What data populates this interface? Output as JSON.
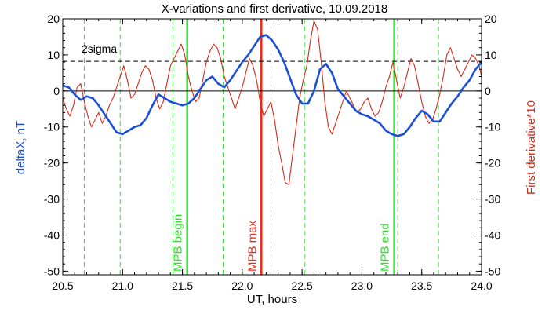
{
  "chart_data": {
    "type": "line",
    "title": "X-variations and first derivative, 10.09.2018",
    "xlabel": "UT, hours",
    "ylabel_left": "deltaX, nT",
    "ylabel_right": "First derivative*10",
    "xlim": [
      20.5,
      24.0
    ],
    "ylim": [
      -51,
      20
    ],
    "xticks": [
      20.5,
      21.0,
      21.5,
      22.0,
      22.5,
      23.0,
      23.5,
      24.0
    ],
    "xtick_labels": [
      "20.5",
      "21.0",
      "21.5",
      "22.0",
      "22.5",
      "23.0",
      "23.5",
      "24.0"
    ],
    "yticks": [
      20,
      10,
      0,
      -10,
      -20,
      -30,
      -40,
      -50
    ],
    "ytick_labels": [
      "20",
      "10",
      "0",
      "-10",
      "-20",
      "-30",
      "-40",
      "-50"
    ],
    "grid": false,
    "colors": {
      "deltaX": "#1a4fd6",
      "derivative": "#d42a1a",
      "mpb_boundary": "#2ee02e",
      "mpb_max": "#ee2a10",
      "axis_left_label": "#1a4fd6",
      "axis_right_label": "#d42a1a",
      "sigma": "#000000"
    },
    "two_sigma": {
      "label": "2sigma",
      "value": 8.2
    },
    "zero_line": 0,
    "dashed_verticals": [
      20.68,
      20.98,
      21.42,
      21.84,
      22.24,
      22.52,
      23.3,
      23.64
    ],
    "markers": [
      {
        "label": "MPB begin",
        "x": 21.54,
        "color": "#2ee02e"
      },
      {
        "label": "MPB max",
        "x": 22.16,
        "color": "#ee2a10"
      },
      {
        "label": "MPB end",
        "x": 23.27,
        "color": "#2ee02e"
      }
    ],
    "series": [
      {
        "key": "deltaX",
        "x": [
          20.5,
          20.55,
          20.6,
          20.65,
          20.7,
          20.75,
          20.8,
          20.85,
          20.9,
          20.95,
          21.0,
          21.05,
          21.1,
          21.15,
          21.2,
          21.25,
          21.3,
          21.35,
          21.4,
          21.45,
          21.5,
          21.55,
          21.6,
          21.65,
          21.7,
          21.75,
          21.8,
          21.85,
          21.9,
          21.95,
          22.0,
          22.05,
          22.1,
          22.15,
          22.2,
          22.25,
          22.3,
          22.35,
          22.4,
          22.45,
          22.5,
          22.55,
          22.6,
          22.65,
          22.7,
          22.75,
          22.8,
          22.85,
          22.9,
          22.95,
          23.0,
          23.05,
          23.1,
          23.15,
          23.2,
          23.25,
          23.3,
          23.35,
          23.4,
          23.45,
          23.5,
          23.55,
          23.6,
          23.65,
          23.7,
          23.75,
          23.8,
          23.85,
          23.9,
          23.95,
          24.0
        ],
        "values": [
          1.5,
          1.0,
          -1.0,
          -2.5,
          -1.5,
          -2.0,
          -4.0,
          -6.5,
          -9.0,
          -11.5,
          -12.0,
          -11.0,
          -10.0,
          -9.5,
          -7.5,
          -4.0,
          -1.0,
          -2.0,
          -3.0,
          -3.5,
          -4.0,
          -3.5,
          -2.0,
          0.5,
          3.0,
          4.0,
          2.0,
          1.0,
          3.0,
          5.5,
          8.0,
          10.0,
          12.5,
          15.0,
          15.5,
          14.0,
          11.5,
          8.0,
          3.5,
          -1.0,
          -3.5,
          -3.5,
          0.0,
          6.0,
          7.5,
          5.0,
          0.5,
          -1.5,
          -3.5,
          -5.5,
          -6.5,
          -7.0,
          -8.0,
          -9.0,
          -11.0,
          -12.0,
          -12.5,
          -12.0,
          -10.0,
          -7.5,
          -5.5,
          -6.5,
          -8.5,
          -8.5,
          -6.0,
          -3.5,
          -1.5,
          1.0,
          3.0,
          6.0,
          8.0
        ]
      },
      {
        "key": "derivative",
        "x": [
          20.5,
          20.53,
          20.56,
          20.59,
          20.62,
          20.65,
          20.68,
          20.71,
          20.74,
          20.77,
          20.8,
          20.83,
          20.86,
          20.89,
          20.92,
          20.95,
          20.98,
          21.01,
          21.04,
          21.07,
          21.1,
          21.13,
          21.16,
          21.19,
          21.22,
          21.25,
          21.28,
          21.31,
          21.34,
          21.37,
          21.4,
          21.43,
          21.46,
          21.49,
          21.52,
          21.55,
          21.58,
          21.61,
          21.64,
          21.67,
          21.7,
          21.73,
          21.76,
          21.79,
          21.82,
          21.85,
          21.88,
          21.91,
          21.94,
          21.97,
          22.0,
          22.03,
          22.06,
          22.09,
          22.12,
          22.15,
          22.18,
          22.21,
          22.24,
          22.27,
          22.3,
          22.33,
          22.36,
          22.39,
          22.42,
          22.45,
          22.48,
          22.51,
          22.54,
          22.57,
          22.6,
          22.63,
          22.66,
          22.69,
          22.72,
          22.75,
          22.78,
          22.81,
          22.84,
          22.87,
          22.9,
          22.93,
          22.96,
          22.99,
          23.02,
          23.05,
          23.08,
          23.11,
          23.14,
          23.17,
          23.2,
          23.23,
          23.26,
          23.29,
          23.32,
          23.35,
          23.38,
          23.41,
          23.44,
          23.47,
          23.5,
          23.53,
          23.56,
          23.59,
          23.62,
          23.65,
          23.68,
          23.71,
          23.74,
          23.77,
          23.8,
          23.83,
          23.86,
          23.89,
          23.92,
          23.95,
          23.98,
          24.0
        ],
        "values": [
          -2.0,
          -5.0,
          -7.0,
          -4.0,
          1.0,
          2.0,
          -3.0,
          -7.0,
          -10.0,
          -8.0,
          -6.0,
          -9.0,
          -7.0,
          -4.0,
          -2.0,
          1.0,
          4.0,
          7.0,
          3.0,
          -2.0,
          -1.0,
          2.0,
          5.0,
          7.0,
          6.0,
          3.0,
          -2.0,
          -5.0,
          -3.0,
          2.0,
          7.0,
          9.0,
          11.0,
          13.0,
          10.0,
          4.0,
          0.0,
          -3.0,
          -2.0,
          3.0,
          8.0,
          11.0,
          13.0,
          12.0,
          9.0,
          4.0,
          1.0,
          -2.0,
          -5.0,
          -2.0,
          1.0,
          5.0,
          9.0,
          7.0,
          3.0,
          -3.0,
          -7.0,
          -5.0,
          -3.0,
          -8.0,
          -15.0,
          -20.0,
          -25.5,
          -26.0,
          -18.0,
          -10.0,
          -2.0,
          3.0,
          7.0,
          14.0,
          19.5,
          17.0,
          8.0,
          -3.0,
          -10.0,
          -12.0,
          -9.0,
          -6.0,
          -3.0,
          0.0,
          -2.0,
          -4.0,
          -6.0,
          -5.0,
          -3.0,
          -2.0,
          -5.0,
          -7.0,
          -6.0,
          -3.0,
          1.0,
          4.0,
          8.0,
          3.0,
          -2.0,
          1.0,
          5.0,
          9.0,
          7.0,
          2.0,
          -3.0,
          -7.0,
          -9.0,
          -8.0,
          -5.0,
          -1.0,
          4.0,
          10.0,
          12.0,
          9.0,
          6.0,
          4.0,
          6.0,
          8.0,
          10.0,
          9.0,
          7.0,
          4.0
        ]
      }
    ]
  }
}
